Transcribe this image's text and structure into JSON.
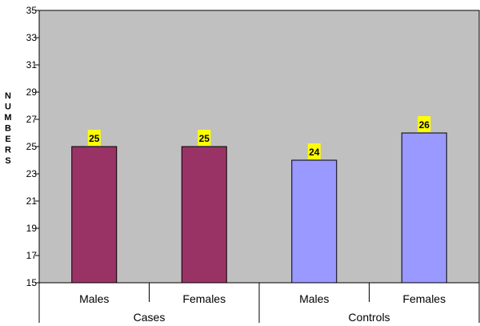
{
  "chart_data": {
    "type": "bar",
    "ylabel": "NUMBERS",
    "ylim": [
      15,
      35
    ],
    "yticks": [
      "15",
      "17",
      "19",
      "21",
      "23",
      "25",
      "27",
      "29",
      "31",
      "33",
      "35"
    ],
    "grid": false,
    "plot_background": "#c0c0c0",
    "groups": [
      {
        "label": "Cases",
        "color": "#993366",
        "bars": [
          {
            "label": "Males",
            "value": 25
          },
          {
            "label": "Females",
            "value": 25
          }
        ]
      },
      {
        "label": "Controls",
        "color": "#9999ff",
        "bars": [
          {
            "label": "Males",
            "value": 24
          },
          {
            "label": "Females",
            "value": 26
          }
        ]
      }
    ],
    "data_label_background": "#ffff00"
  }
}
